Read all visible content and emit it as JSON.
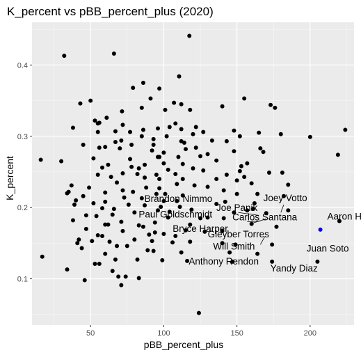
{
  "chart_data": {
    "type": "scatter",
    "title": "K_percent vs pBB_percent_plus (2020)",
    "xlabel": "pBB_percent_plus",
    "ylabel": "K_percent",
    "xlim": [
      10,
      230
    ],
    "ylim": [
      0.035,
      0.46
    ],
    "x_ticks": [
      50,
      100,
      150,
      200
    ],
    "x_tick_labels": [
      "50",
      "100",
      "150",
      "200"
    ],
    "y_ticks": [
      0.1,
      0.2,
      0.3,
      0.4
    ],
    "y_tick_labels": [
      "0.1",
      "0.2",
      "0.3",
      "0.4"
    ],
    "grid": true,
    "point_color": "#000000",
    "highlight_color": "#0000ff",
    "panel_color": "#ebebeb",
    "series": [
      {
        "points": [
          [
            117.5,
            0.441
          ],
          [
            66,
            0.416
          ],
          [
            32,
            0.413
          ],
          [
            110.5,
            0.384
          ],
          [
            86,
            0.375
          ],
          [
            79,
            0.368
          ],
          [
            97,
            0.367
          ],
          [
            50,
            0.35
          ],
          [
            91,
            0.353
          ],
          [
            155,
            0.353
          ],
          [
            43,
            0.346
          ],
          [
            107,
            0.347
          ],
          [
            112,
            0.345
          ],
          [
            140,
            0.342
          ],
          [
            85,
            0.34
          ],
          [
            71.5,
            0.335
          ],
          [
            173,
            0.344
          ],
          [
            176,
            0.34
          ],
          [
            118,
            0.337
          ],
          [
            101,
            0.337
          ],
          [
            61,
            0.326
          ],
          [
            53,
            0.322
          ],
          [
            55,
            0.318
          ],
          [
            56,
            0.319
          ],
          [
            72,
            0.316
          ],
          [
            122,
            0.313
          ],
          [
            38,
            0.312
          ],
          [
            104,
            0.313
          ],
          [
            96,
            0.311
          ],
          [
            86,
            0.309
          ],
          [
            112,
            0.31
          ],
          [
            148,
            0.308
          ],
          [
            67,
            0.307
          ],
          [
            77,
            0.306
          ],
          [
            55,
            0.306
          ],
          [
            127,
            0.306
          ],
          [
            165,
            0.305
          ],
          [
            180,
            0.303
          ],
          [
            85,
            0.3
          ],
          [
            200,
            0.299
          ],
          [
            224,
            0.309
          ],
          [
            120,
            0.303
          ],
          [
            102,
            0.3
          ],
          [
            152,
            0.3
          ],
          [
            93,
            0.296
          ],
          [
            71,
            0.294
          ],
          [
            133,
            0.294
          ],
          [
            67,
            0.292
          ],
          [
            112,
            0.293
          ],
          [
            114,
            0.291
          ],
          [
            143,
            0.293
          ],
          [
            45,
            0.288
          ],
          [
            78,
            0.288
          ],
          [
            60,
            0.285
          ],
          [
            122,
            0.284
          ],
          [
            56,
            0.284
          ],
          [
            70,
            0.283
          ],
          [
            115,
            0.282
          ],
          [
            92,
            0.28
          ],
          [
            100,
            0.277
          ],
          [
            97,
            0.271
          ],
          [
            52,
            0.269
          ],
          [
            77,
            0.268
          ],
          [
            110,
            0.271
          ],
          [
            125,
            0.272
          ],
          [
            136,
            0.266
          ],
          [
            166,
            0.283
          ],
          [
            168,
            0.278
          ],
          [
            148,
            0.279
          ],
          [
            130,
            0.275
          ],
          [
            96,
            0.271
          ],
          [
            219,
            0.274
          ],
          [
            30,
            0.265
          ],
          [
            100,
            0.262
          ],
          [
            113,
            0.261
          ],
          [
            62,
            0.26
          ],
          [
            87,
            0.26
          ],
          [
            58,
            0.256
          ],
          [
            83,
            0.255
          ],
          [
            120,
            0.255
          ],
          [
            103,
            0.253
          ],
          [
            127,
            0.252
          ],
          [
            157,
            0.262
          ],
          [
            153,
            0.258
          ],
          [
            152,
            0.251
          ],
          [
            143,
            0.246
          ],
          [
            172,
            0.249
          ],
          [
            181,
            0.249
          ],
          [
            95,
            0.246
          ],
          [
            55,
            0.246
          ],
          [
            72,
            0.248
          ],
          [
            82,
            0.247
          ],
          [
            108,
            0.247
          ],
          [
            64,
            0.243
          ],
          [
            87,
            0.242
          ],
          [
            97,
            0.24
          ],
          [
            113,
            0.24
          ],
          [
            136,
            0.24
          ],
          [
            155,
            0.243
          ],
          [
            150,
            0.238
          ],
          [
            160,
            0.234
          ],
          [
            185,
            0.232
          ],
          [
            68,
            0.235
          ],
          [
            109,
            0.233
          ],
          [
            121,
            0.231
          ],
          [
            130,
            0.229
          ],
          [
            49,
            0.228
          ],
          [
            88,
            0.228
          ],
          [
            97,
            0.227
          ],
          [
            72,
            0.224
          ],
          [
            79,
            0.222
          ],
          [
            141,
            0.224
          ],
          [
            60,
            0.221
          ],
          [
            95,
            0.219
          ],
          [
            101,
            0.219
          ],
          [
            150,
            0.219
          ],
          [
            164,
            0.219
          ],
          [
            113,
            0.217
          ],
          [
            73,
            0.214
          ],
          [
            85,
            0.213
          ],
          [
            182,
            0.216
          ],
          [
            45,
            0.216
          ],
          [
            109,
            0.209
          ],
          [
            40,
            0.21
          ],
          [
            60,
            0.208
          ],
          [
            100,
            0.209
          ],
          [
            136,
            0.205
          ],
          [
            162,
            0.206
          ],
          [
            52,
            0.206
          ],
          [
            76,
            0.204
          ],
          [
            87,
            0.203
          ],
          [
            98,
            0.201
          ],
          [
            111,
            0.201
          ],
          [
            119,
            0.197
          ],
          [
            157,
            0.196
          ],
          [
            148,
            0.193
          ],
          [
            185,
            0.196
          ],
          [
            80,
            0.193
          ],
          [
            65,
            0.19
          ],
          [
            47,
            0.189
          ],
          [
            54,
            0.188
          ],
          [
            103,
            0.186
          ],
          [
            125,
            0.185
          ],
          [
            141,
            0.185
          ],
          [
            220,
            0.181
          ],
          [
            38,
            0.182
          ],
          [
            71,
            0.18
          ],
          [
            94,
            0.179
          ],
          [
            62,
            0.176
          ],
          [
            60,
            0.176
          ],
          [
            83,
            0.175
          ],
          [
            86,
            0.173
          ],
          [
            72,
            0.167
          ],
          [
            115,
            0.168
          ],
          [
            140,
            0.167
          ],
          [
            177,
            0.173
          ],
          [
            94,
            0.165
          ],
          [
            100,
            0.163
          ],
          [
            55,
            0.161
          ],
          [
            58,
            0.16
          ],
          [
            42,
            0.155
          ],
          [
            80,
            0.155
          ],
          [
            92,
            0.153
          ],
          [
            106,
            0.151
          ],
          [
            118,
            0.152
          ],
          [
            140,
            0.15
          ],
          [
            149,
            0.148
          ],
          [
            174,
            0.148
          ],
          [
            68,
            0.146
          ],
          [
            75,
            0.146
          ],
          [
            89,
            0.14
          ],
          [
            93,
            0.139
          ],
          [
            112,
            0.137
          ],
          [
            145,
            0.137
          ],
          [
            164,
            0.135
          ],
          [
            60,
            0.135
          ],
          [
            67,
            0.127
          ],
          [
            82,
            0.127
          ],
          [
            99,
            0.126
          ],
          [
            116,
            0.125
          ],
          [
            147,
            0.124
          ],
          [
            174,
            0.124
          ],
          [
            205,
            0.124
          ],
          [
            56,
            0.121
          ],
          [
            34,
            0.113
          ],
          [
            65,
            0.111
          ],
          [
            69,
            0.103
          ],
          [
            74,
            0.103
          ],
          [
            83,
            0.101
          ],
          [
            71,
            0.091
          ],
          [
            46,
            0.098
          ],
          [
            124,
            0.052
          ],
          [
            17,
            0.131
          ],
          [
            16,
            0.267
          ],
          [
            34,
            0.22
          ],
          [
            41,
            0.15
          ],
          [
            63,
            0.152
          ],
          [
            90,
            0.162
          ],
          [
            118,
            0.176
          ],
          [
            130,
            0.186
          ],
          [
            160,
            0.177
          ],
          [
            170,
            0.192
          ],
          [
            78,
            0.257
          ],
          [
            93,
            0.288
          ],
          [
            108,
            0.318
          ],
          [
            58,
            0.199
          ],
          [
            66,
            0.198
          ],
          [
            96,
            0.196
          ],
          [
            104,
            0.194
          ],
          [
            128,
            0.166
          ],
          [
            108,
            0.16
          ],
          [
            161,
            0.198
          ],
          [
            142,
            0.208
          ],
          [
            37,
            0.231
          ],
          [
            35,
            0.222
          ],
          [
            39,
            0.204
          ],
          [
            47,
            0.17
          ],
          [
            51,
            0.153
          ],
          [
            44,
            0.143
          ],
          [
            53,
            0.121
          ]
        ],
        "color": "#000000"
      },
      {
        "points": [
          [
            207,
            0.169
          ]
        ],
        "color": "#0000ff"
      }
    ],
    "annotations": [
      {
        "text": "Joey Votto",
        "x": 183,
        "y": 0.209
      },
      {
        "text": "Brandon Nimmo",
        "x": 110,
        "y": 0.208
      },
      {
        "text": "Joe Panik",
        "x": 150,
        "y": 0.195
      },
      {
        "text": "Aaron Hicks",
        "x": 229,
        "y": 0.183
      },
      {
        "text": "Paul Goldschmidt",
        "x": 108,
        "y": 0.186
      },
      {
        "text": "Bryce Harper",
        "x": 125,
        "y": 0.166
      },
      {
        "text": "Gleyber Torres",
        "x": 151,
        "y": 0.158
      },
      {
        "text": "Carlos Santana",
        "x": 169,
        "y": 0.182
      },
      {
        "text": "Will Smith",
        "x": 148,
        "y": 0.141
      },
      {
        "text": "Juan Soto",
        "x": 212,
        "y": 0.138
      },
      {
        "text": "Anthony Rendon",
        "x": 141,
        "y": 0.12
      },
      {
        "text": "Yandy Diaz",
        "x": 189,
        "y": 0.11
      }
    ]
  }
}
